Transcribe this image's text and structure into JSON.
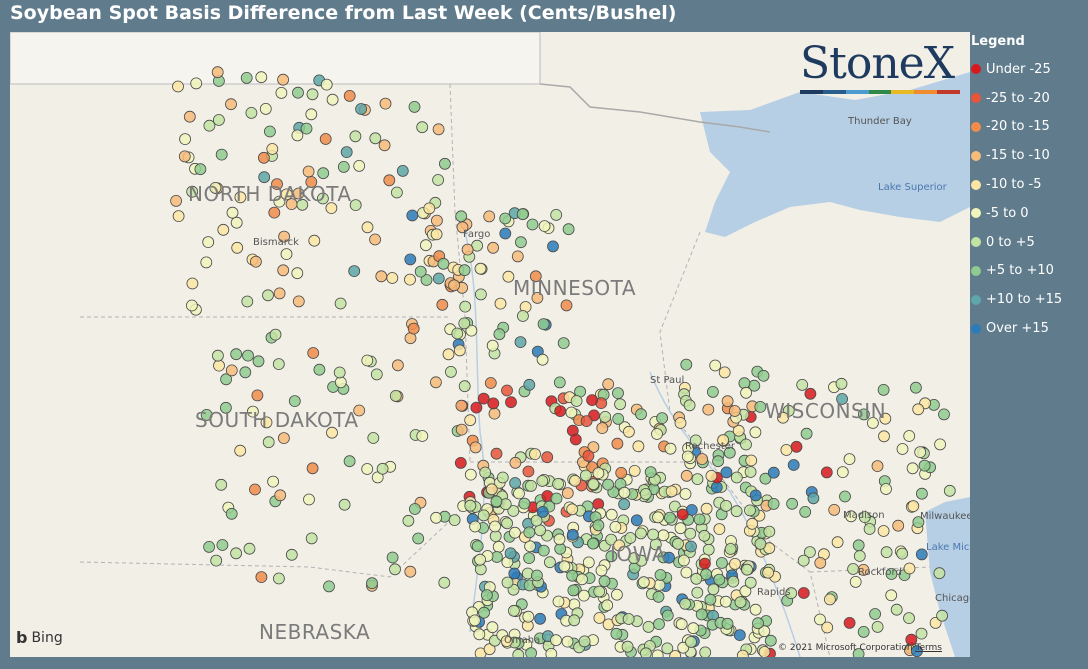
{
  "title": "Soybean Spot Basis Difference from Last Week (Cents/Bushel)",
  "legend": {
    "title": "Legend",
    "items": [
      {
        "label": "Under -25",
        "color": "#d7191c"
      },
      {
        "label": "-25 to -20",
        "color": "#e8553a"
      },
      {
        "label": "-20 to -15",
        "color": "#f08c4a"
      },
      {
        "label": "-15 to -10",
        "color": "#f7bb7a"
      },
      {
        "label": "-10 to -5",
        "color": "#fbe6a4"
      },
      {
        "label": "-5 to 0",
        "color": "#f0f5bb"
      },
      {
        "label": "0 to +5",
        "color": "#c3e3a2"
      },
      {
        "label": "+5 to +10",
        "color": "#8fcb8e"
      },
      {
        "label": "+10 to +15",
        "color": "#5ea7a8"
      },
      {
        "label": "Over +15",
        "color": "#2b7bb9"
      }
    ]
  },
  "map": {
    "states": [
      "NORTH DAKOTA",
      "MINNESOTA",
      "SOUTH DAKOTA",
      "WISCONSIN",
      "NEBRASKA",
      "IOWA"
    ],
    "cities": [
      "Bismarck",
      "Fargo",
      "St Paul",
      "Rochester",
      "Madison",
      "Milwaukee",
      "Rockford",
      "Chicago",
      "Thunder Bay",
      "Rapids",
      "Omaha"
    ],
    "water": [
      "Lake Superior",
      "Lake Mic"
    ],
    "logo": "StoneX",
    "logo_colors": [
      "#1e3a5f",
      "#2b5d8c",
      "#4b9bd1",
      "#2f8a4a",
      "#e8b923",
      "#f08c2e",
      "#c0392b"
    ],
    "bing": "Bing",
    "copyright": "© 2021 Microsoft Corporation",
    "terms": "Terms"
  }
}
